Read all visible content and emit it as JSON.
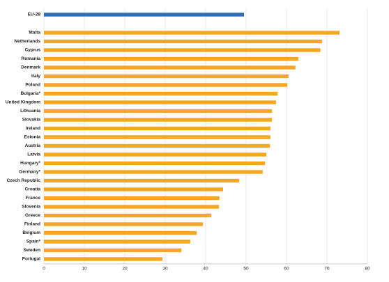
{
  "chart_data": {
    "type": "barh",
    "categories": [
      "EU-28",
      "Malta",
      "Netherlands",
      "Cyprus",
      "Romania",
      "Denmark",
      "Italy",
      "Poland",
      "Bulgaria*",
      "United Kingdom",
      "Lithuania",
      "Slovakia",
      "Ireland",
      "Estonia",
      "Austria",
      "Latvia",
      "Hungary*",
      "Germany*",
      "Czech Republic",
      "Croatia",
      "France",
      "Slovenia",
      "Greece",
      "Finland",
      "Belgium",
      "Spain*",
      "Sweden",
      "Portugal"
    ],
    "values": [
      49.5,
      73.1,
      68.8,
      68.4,
      62.9,
      62.2,
      60.5,
      60.2,
      57.8,
      57.4,
      56.4,
      56.4,
      56.0,
      56.0,
      55.9,
      55.0,
      54.7,
      54.1,
      48.3,
      44.3,
      43.4,
      43.3,
      41.4,
      39.3,
      37.8,
      36.2,
      34.0,
      29.3
    ],
    "colors": [
      "#2f6eb5",
      "#f5a623",
      "#f5a623",
      "#f5a623",
      "#f5a623",
      "#f5a623",
      "#f5a623",
      "#f5a623",
      "#f5a623",
      "#f5a623",
      "#f5a623",
      "#f5a623",
      "#f5a623",
      "#f5a623",
      "#f5a623",
      "#f5a623",
      "#f5a623",
      "#f5a623",
      "#f5a623",
      "#f5a623",
      "#f5a623",
      "#f5a623",
      "#f5a623",
      "#f5a623",
      "#f5a623",
      "#f5a623",
      "#f5a623",
      "#f5a623"
    ],
    "xlim": [
      0,
      80
    ],
    "xticks": [
      0,
      10,
      20,
      30,
      40,
      50,
      60,
      70,
      80
    ],
    "grid": true
  }
}
